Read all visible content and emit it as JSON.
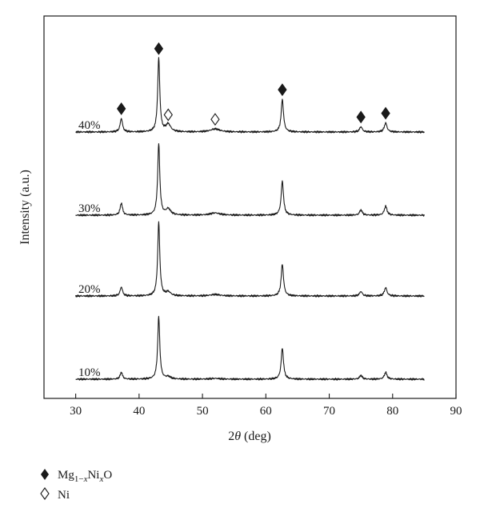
{
  "chart_data": {
    "type": "line",
    "xlabel_prefix": "2",
    "xlabel_symbol": "θ",
    "xlabel_suffix": " (deg)",
    "ylabel": "Intensity (a.u.)",
    "xlim": [
      25,
      90
    ],
    "xticks": [
      30,
      40,
      50,
      60,
      70,
      80,
      90
    ],
    "x_range": [
      30,
      85
    ],
    "y_ticks_shown": false,
    "grid": false,
    "legend_position": "below-left",
    "legend": [
      {
        "marker": "filled-diamond",
        "formula_parts": [
          "Mg",
          "1−",
          "x",
          "Ni",
          "x",
          "O"
        ]
      },
      {
        "marker": "open-diamond",
        "label": "Ni"
      }
    ],
    "peak_markers": [
      {
        "series": "40%",
        "x": 37.2,
        "type": "filled"
      },
      {
        "series": "40%",
        "x": 43.1,
        "type": "filled"
      },
      {
        "series": "40%",
        "x": 44.6,
        "type": "open"
      },
      {
        "series": "40%",
        "x": 52.0,
        "type": "open"
      },
      {
        "series": "40%",
        "x": 62.6,
        "type": "filled"
      },
      {
        "series": "40%",
        "x": 75.0,
        "type": "filled"
      },
      {
        "series": "40%",
        "x": 78.9,
        "type": "filled"
      }
    ],
    "series": [
      {
        "name": "10%",
        "peaks": [
          {
            "x": 37.2,
            "h": 9
          },
          {
            "x": 43.1,
            "h": 82
          },
          {
            "x": 44.6,
            "h": 3
          },
          {
            "x": 52.0,
            "h": 1
          },
          {
            "x": 62.6,
            "h": 41
          },
          {
            "x": 75.0,
            "h": 5
          },
          {
            "x": 78.9,
            "h": 9
          }
        ]
      },
      {
        "name": "20%",
        "peaks": [
          {
            "x": 37.2,
            "h": 12
          },
          {
            "x": 43.1,
            "h": 97
          },
          {
            "x": 44.6,
            "h": 5
          },
          {
            "x": 52.0,
            "h": 2
          },
          {
            "x": 62.6,
            "h": 42
          },
          {
            "x": 75.0,
            "h": 6
          },
          {
            "x": 78.9,
            "h": 11
          }
        ]
      },
      {
        "name": "30%",
        "peaks": [
          {
            "x": 37.2,
            "h": 16
          },
          {
            "x": 43.1,
            "h": 94
          },
          {
            "x": 44.6,
            "h": 8
          },
          {
            "x": 52.0,
            "h": 3
          },
          {
            "x": 62.6,
            "h": 45
          },
          {
            "x": 75.0,
            "h": 7
          },
          {
            "x": 78.9,
            "h": 12
          }
        ]
      },
      {
        "name": "40%",
        "peaks": [
          {
            "x": 37.2,
            "h": 18
          },
          {
            "x": 43.1,
            "h": 97
          },
          {
            "x": 44.6,
            "h": 10
          },
          {
            "x": 52.0,
            "h": 4
          },
          {
            "x": 62.6,
            "h": 43
          },
          {
            "x": 75.0,
            "h": 7
          },
          {
            "x": 78.9,
            "h": 12
          }
        ]
      }
    ]
  }
}
